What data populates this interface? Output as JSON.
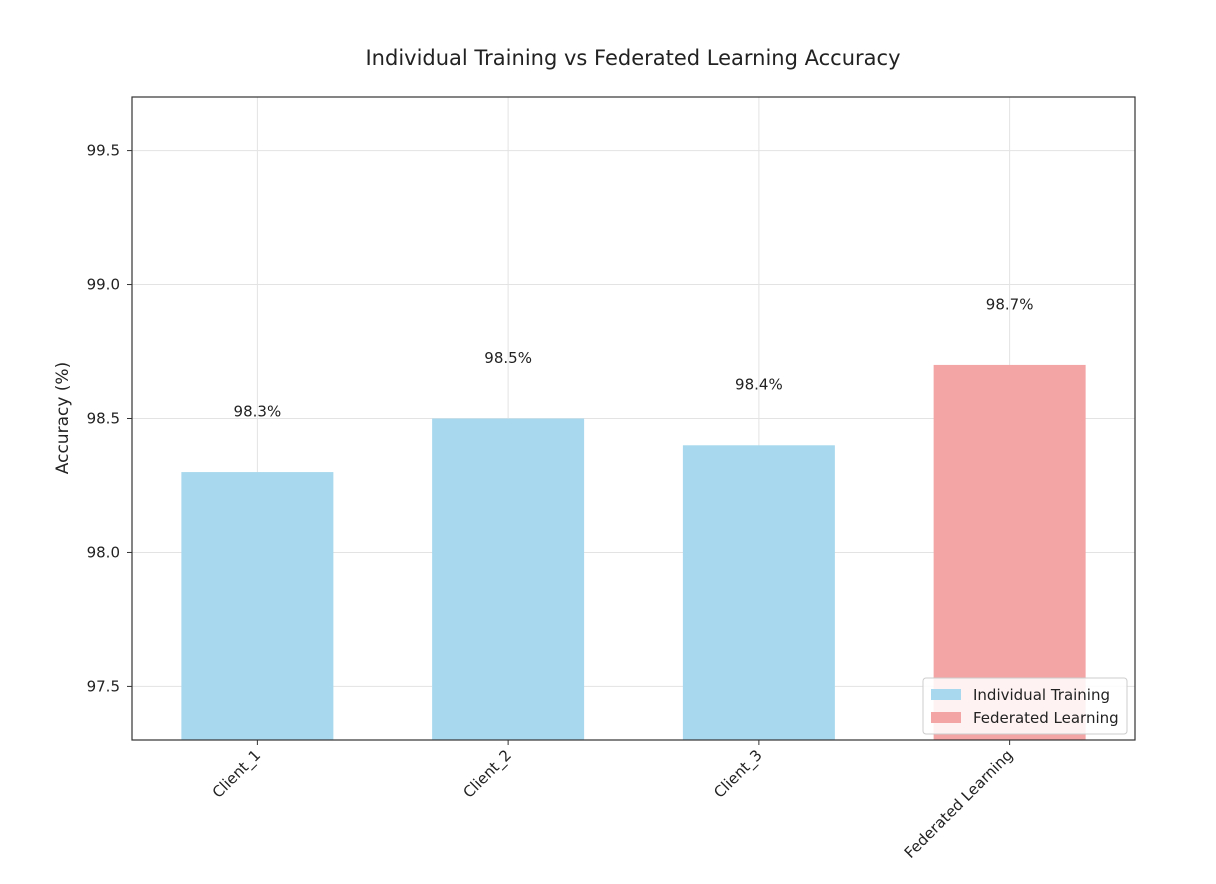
{
  "chart_data": {
    "type": "bar",
    "title": "Individual Training vs Federated Learning Accuracy",
    "xlabel": "",
    "ylabel": "Accuracy (%)",
    "categories": [
      "Client_1",
      "Client_2",
      "Client_3",
      "Federated Learning"
    ],
    "values": [
      98.3,
      98.5,
      98.4,
      98.7
    ],
    "data_labels": [
      "98.3%",
      "98.5%",
      "98.4%",
      "98.7%"
    ],
    "bar_groups": [
      "Individual Training",
      "Individual Training",
      "Individual Training",
      "Federated Learning"
    ],
    "ylim": [
      97.3,
      99.7
    ],
    "yticks": [
      97.5,
      98.0,
      98.5,
      99.0,
      99.5
    ],
    "ytick_labels": [
      "97.5",
      "98.0",
      "98.5",
      "99.0",
      "99.5"
    ],
    "grid": true,
    "legend": {
      "placement": "lower-right",
      "entries": [
        {
          "label": "Individual Training",
          "color": "#a8d8ee"
        },
        {
          "label": "Federated Learning",
          "color": "#f3a5a5"
        }
      ]
    },
    "colors": {
      "Individual Training": "#a8d8ee",
      "Federated Learning": "#f3a5a5"
    }
  }
}
